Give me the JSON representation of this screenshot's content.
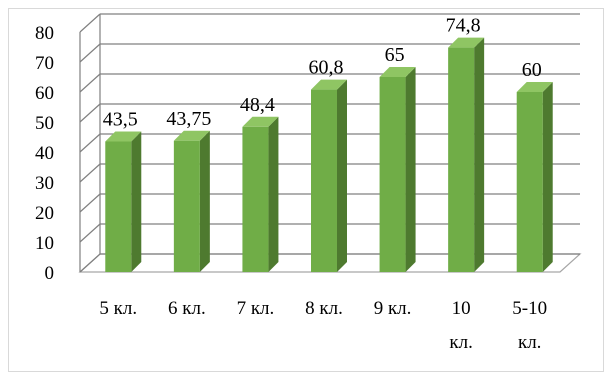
{
  "chart_data": {
    "type": "bar",
    "title": "",
    "xlabel": "",
    "ylabel": "",
    "ylim": [
      0,
      80
    ],
    "yticks": [
      "0",
      "10",
      "20",
      "30",
      "40",
      "50",
      "60",
      "70",
      "80"
    ],
    "grid": true,
    "three_d": true,
    "categories": [
      [
        "5 кл."
      ],
      [
        "6 кл."
      ],
      [
        "7 кл."
      ],
      [
        "8 кл."
      ],
      [
        "9 кл."
      ],
      [
        "10",
        "кл."
      ],
      [
        "5-10",
        "кл."
      ]
    ],
    "values": [
      43.5,
      43.75,
      48.4,
      60.8,
      65,
      74.8,
      60
    ],
    "data_labels": [
      "43,5",
      "43,75",
      "48,4",
      "60,8",
      "65",
      "74,8",
      "60"
    ],
    "colors": {
      "bar_front": "#70ad47",
      "bar_side": "#4e7a2f",
      "bar_top": "#8fc563",
      "grid": "#808080",
      "floor": "#a6a6a6"
    }
  }
}
